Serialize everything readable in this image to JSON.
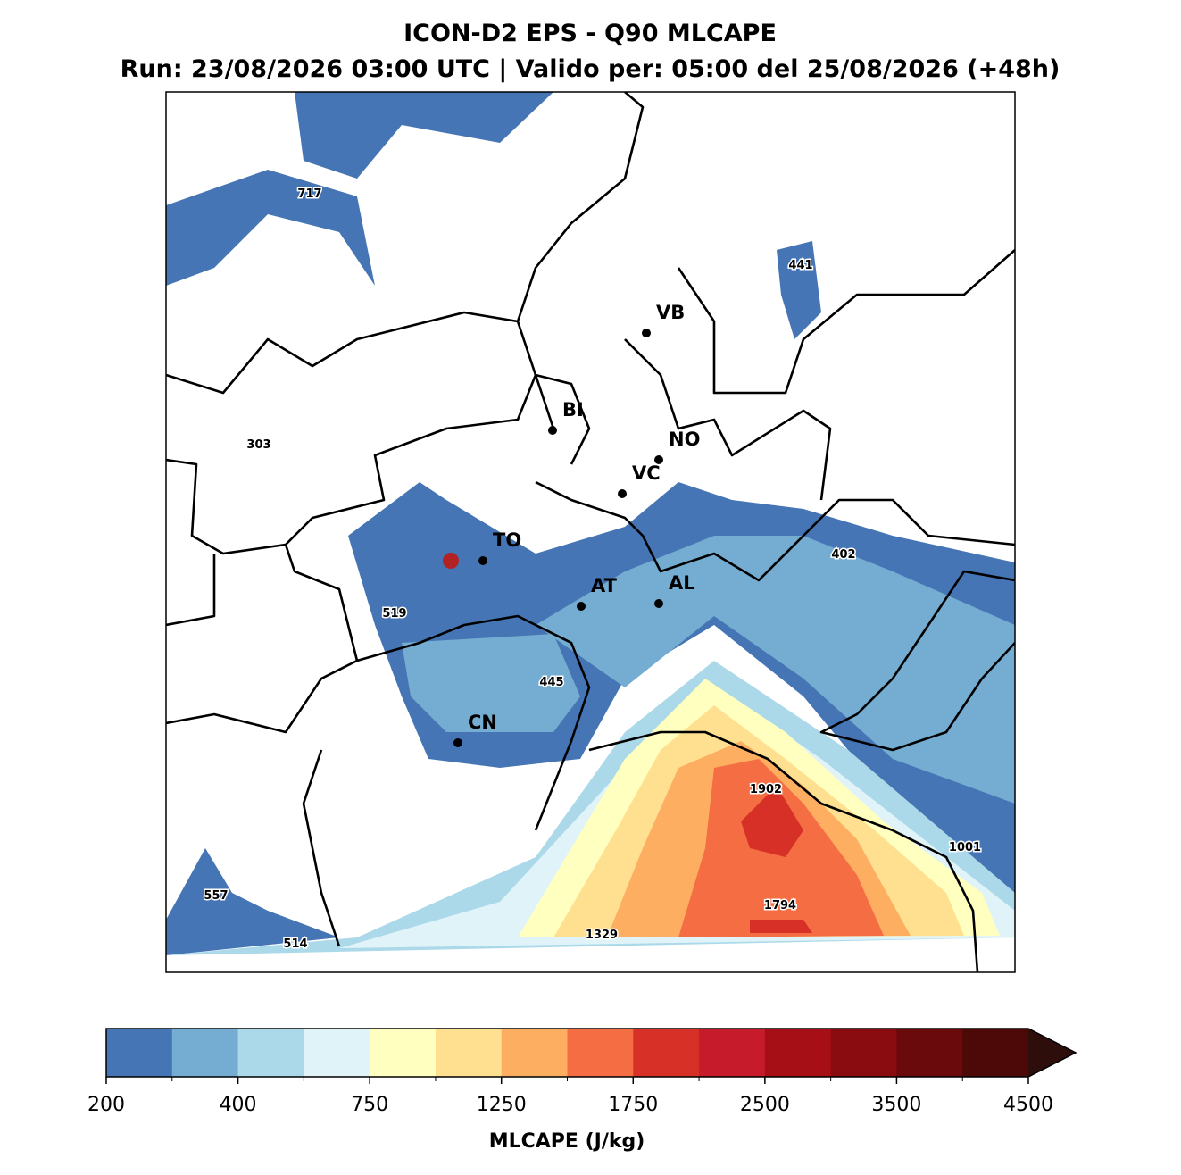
{
  "title": "ICON-D2 EPS - Q90 MLCAPE",
  "subtitle": "Run: 23/08/2026 03:00 UTC | Valido per: 05:00 del 25/08/2026 (+48h)",
  "cities": [
    "VB",
    "BI",
    "NO",
    "VC",
    "TO",
    "AT",
    "AL",
    "CN"
  ],
  "value_labels": [
    717,
    441,
    303,
    402,
    519,
    445,
    1902,
    1001,
    557,
    1794,
    514,
    1329
  ],
  "colorbar": {
    "label": "MLCAPE (J/kg)",
    "colors": [
      "#4575b4",
      "#74add1",
      "#abd9e9",
      "#e0f3f8",
      "#ffffbf",
      "#fee090",
      "#fdae61",
      "#f46d43",
      "#d73027",
      "#c51b2a",
      "#a50f15",
      "#8b0c10",
      "#6b0a0c",
      "#4d0808"
    ],
    "extend_color": "#2d0e0b",
    "ticks": [
      200,
      400,
      750,
      1250,
      1750,
      2500,
      3500,
      4500
    ]
  }
}
